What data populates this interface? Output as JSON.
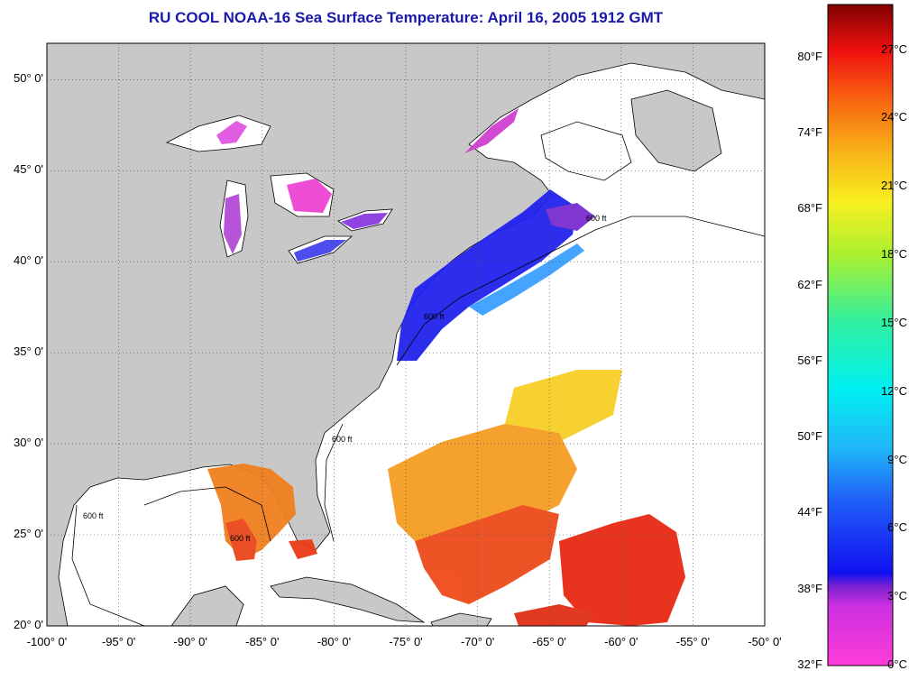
{
  "title": "RU COOL  NOAA-16  Sea Surface Temperature:  April 16, 2005 1912 GMT",
  "map": {
    "lon_range": [
      -100,
      -50
    ],
    "lat_range": [
      20,
      52
    ],
    "background_land": "#c8c8c8",
    "background_water": "#ffffff",
    "grid": "dotted",
    "y_labels": [
      {
        "lat": 50,
        "text": "50° 0'"
      },
      {
        "lat": 45,
        "text": "45° 0'"
      },
      {
        "lat": 40,
        "text": "40° 0'"
      },
      {
        "lat": 35,
        "text": "35° 0'"
      },
      {
        "lat": 30,
        "text": "30° 0'"
      },
      {
        "lat": 25,
        "text": "25° 0'"
      },
      {
        "lat": 20,
        "text": "20° 0'"
      }
    ],
    "x_labels": [
      {
        "lon": -100,
        "text": "-100° 0'"
      },
      {
        "lon": -95,
        "text": "-95° 0'"
      },
      {
        "lon": -90,
        "text": "-90° 0'"
      },
      {
        "lon": -85,
        "text": "-85° 0'"
      },
      {
        "lon": -80,
        "text": "-80° 0'"
      },
      {
        "lon": -75,
        "text": "-75° 0'"
      },
      {
        "lon": -70,
        "text": "-70° 0'"
      },
      {
        "lon": -65,
        "text": "-65° 0'"
      },
      {
        "lon": -60,
        "text": "-60° 0'"
      },
      {
        "lon": -55,
        "text": "-55° 0'"
      },
      {
        "lon": -50,
        "text": "-50° 0'"
      }
    ],
    "contour_label": "600 ft"
  },
  "colorbar": {
    "celsius_range": [
      0,
      29
    ],
    "celsius_labels": [
      "27°C",
      "24°C",
      "21°C",
      "18°C",
      "15°C",
      "12°C",
      "9°C",
      "6°C",
      "3°C",
      "0°C"
    ],
    "celsius_values": [
      27,
      24,
      21,
      18,
      15,
      12,
      9,
      6,
      3,
      0
    ],
    "fahrenheit_labels": [
      "80°F",
      "74°F",
      "68°F",
      "62°F",
      "56°F",
      "50°F",
      "44°F",
      "38°F",
      "32°F"
    ],
    "fahrenheit_values": [
      80,
      74,
      68,
      62,
      56,
      50,
      44,
      38,
      32
    ]
  }
}
